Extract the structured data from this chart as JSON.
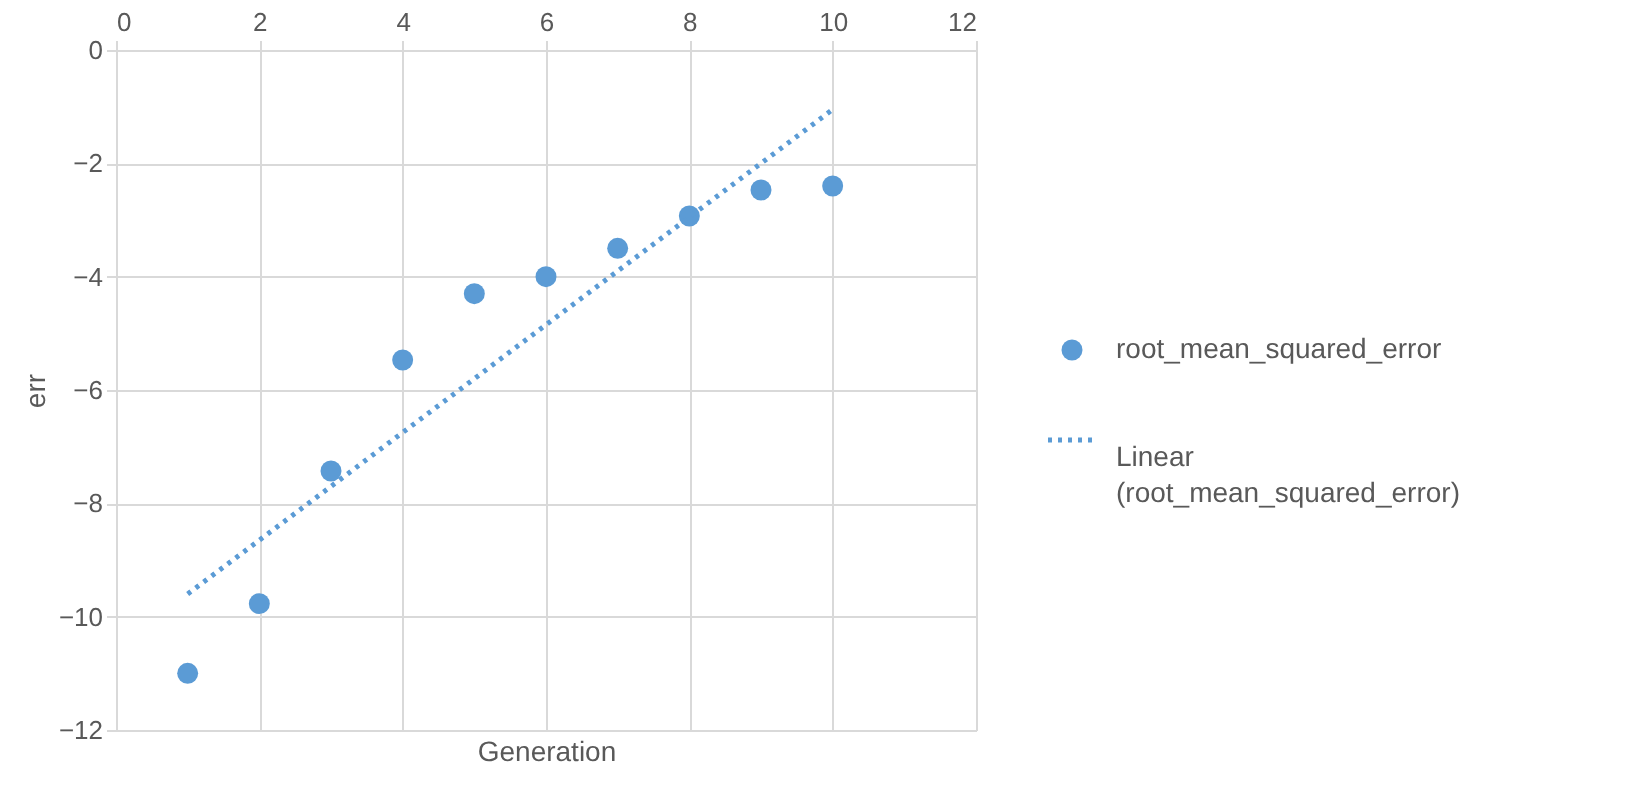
{
  "chart_data": {
    "type": "scatter",
    "xlabel": "Generation",
    "ylabel": "err",
    "xlim": [
      0,
      12
    ],
    "xticks": [
      0,
      2,
      4,
      6,
      8,
      10,
      12
    ],
    "ylim": [
      -12,
      0
    ],
    "yticks": [
      -12,
      -10,
      -8,
      -6,
      -4,
      -2,
      0
    ],
    "grid": true,
    "legend": "right",
    "series": [
      {
        "name": "root_mean_squared_error",
        "color": "#5b9bd5",
        "marker": "circle",
        "x": [
          1,
          2,
          3,
          4,
          5,
          6,
          7,
          8,
          9,
          10
        ],
        "values": [
          -11.0,
          -9.77,
          -7.43,
          -5.47,
          -4.3,
          -4.0,
          -3.5,
          -2.93,
          -2.47,
          -2.4
        ]
      },
      {
        "name": "Linear (root_mean_squared_error)",
        "type": "line",
        "color": "#5b9bd5",
        "line_style": "dotted",
        "marker": "none",
        "x": [
          1,
          10
        ],
        "values": [
          -9.6,
          -1.05
        ]
      }
    ]
  }
}
